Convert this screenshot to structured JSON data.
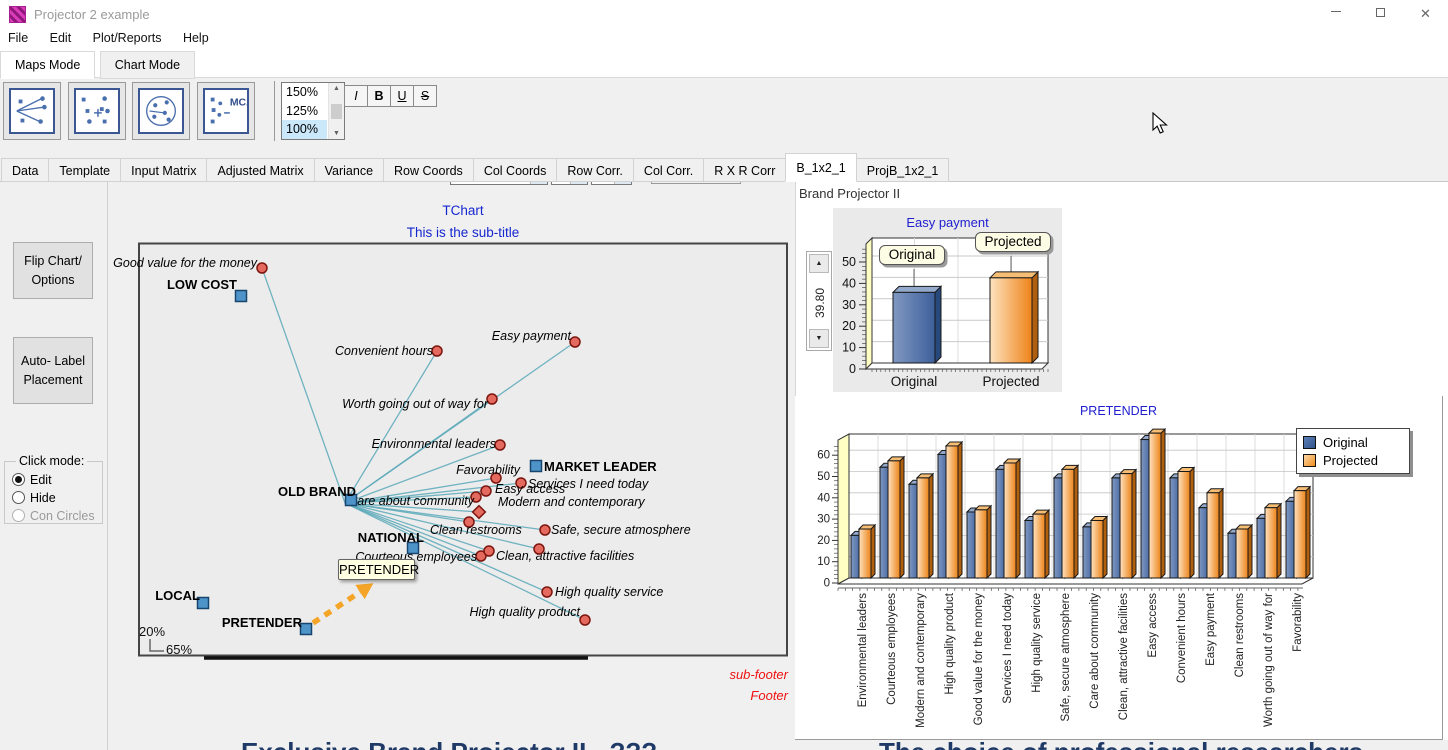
{
  "window": {
    "title": "Projector 2 example",
    "close_glyph": "✕"
  },
  "icons": {
    "dropdown": "▼",
    "up_arrow": "▲",
    "down_arrow": "▼",
    "mca": "MCA"
  },
  "menu": {
    "items": [
      "File",
      "Edit",
      "Plot/Reports",
      "Help"
    ]
  },
  "mode_tabs": {
    "items": [
      "Maps Mode",
      "Chart Mode"
    ],
    "active": "Maps Mode"
  },
  "toolbar": {
    "zoom_levels": [
      "150%",
      "125%",
      "100%"
    ],
    "zoom_selected": "100%",
    "format_buttons": [
      "I",
      "B",
      "U",
      "S"
    ],
    "font_name": "Segoe UI",
    "font_size": "12",
    "font_color": "#000000"
  },
  "tabs": {
    "items": [
      "Data",
      "Template",
      "Input Matrix",
      "Adjusted Matrix",
      "Variance",
      "Row Coords",
      "Col Coords",
      "Row Corr.",
      "Col Corr.",
      "R X R Corr",
      "B_1x2_1",
      "ProjB_1x2_1"
    ],
    "active": "B_1x2_1"
  },
  "sidebar": {
    "flip_button": "Flip Chart/ Options",
    "auto_label_button": "Auto- Label Placement",
    "click_mode": {
      "label": "Click mode:",
      "options": [
        {
          "label": "Edit",
          "checked": true,
          "disabled": false
        },
        {
          "label": "Hide",
          "checked": false,
          "disabled": false
        },
        {
          "label": "Con Circles",
          "checked": false,
          "disabled": true
        }
      ]
    }
  },
  "right_panel": {
    "header": "Brand Projector II",
    "spinner_value": "39.80"
  },
  "footer_headlines": {
    "left": "Exclusive Brand Projector II - ???",
    "right": "The choice of professional researchers"
  },
  "chart_data": [
    {
      "id": "map",
      "type": "scatter",
      "title": "TChart",
      "subtitle": "This is the sub-title",
      "footer": "Footer",
      "sub_footer": "sub-footer",
      "tooltip": "PRETENDER",
      "scale_v": "20%",
      "scale_h": "65%",
      "line_color": "#5aa9b9",
      "point_color": "#e4695e",
      "brand_color": "#4f94c8",
      "arrow_color": "#f4a426",
      "hub": {
        "x": 345,
        "y": 503
      },
      "brands": [
        {
          "label": "LOW COST",
          "x": 241,
          "y": 296,
          "tx": 237,
          "ty": 289,
          "anchor": "end"
        },
        {
          "label": "OLD BRAND",
          "x": 351,
          "y": 500,
          "tx": 356,
          "ty": 496,
          "anchor": "end"
        },
        {
          "label": "MARKET LEADER",
          "x": 536,
          "y": 466,
          "tx": 544,
          "ty": 471,
          "anchor": "start"
        },
        {
          "label": "NATIONAL",
          "x": 413,
          "y": 548,
          "tx": 424,
          "ty": 542,
          "anchor": "end"
        },
        {
          "label": "LOCAL",
          "x": 203,
          "y": 603,
          "tx": 200,
          "ty": 600,
          "anchor": "end"
        },
        {
          "label": "PRETENDER",
          "x": 306,
          "y": 629,
          "tx": 302,
          "ty": 627,
          "anchor": "end"
        }
      ],
      "attributes": [
        {
          "label": "Good value for the money",
          "x": 262,
          "y": 268,
          "tx": 257,
          "ty": 267,
          "anchor": "end"
        },
        {
          "label": "Convenient hours",
          "x": 437,
          "y": 351,
          "tx": 433,
          "ty": 355,
          "anchor": "end"
        },
        {
          "label": "Easy payment",
          "x": 575,
          "y": 342,
          "tx": 571,
          "ty": 340,
          "anchor": "end"
        },
        {
          "label": "Worth going out of way for",
          "x": 492,
          "y": 399,
          "tx": 488,
          "ty": 408,
          "anchor": "end"
        },
        {
          "label": "Environmental leaders",
          "x": 500,
          "y": 445,
          "tx": 496,
          "ty": 448,
          "anchor": "end"
        },
        {
          "label": "Favorability",
          "x": 496,
          "y": 478,
          "tx": 520,
          "ty": 474,
          "anchor": "end"
        },
        {
          "label": "Services I need today",
          "x": 521,
          "y": 483,
          "tx": 528,
          "ty": 488,
          "anchor": "start"
        },
        {
          "label": "Easy access",
          "x": 486,
          "y": 491,
          "tx": 495,
          "ty": 493,
          "anchor": "start"
        },
        {
          "label": "Modern and contemporary",
          "x": 476,
          "y": 497,
          "tx": 498,
          "ty": 506,
          "anchor": "start"
        },
        {
          "label": "Care about community",
          "x": 479,
          "y": 512,
          "marker": "diamond",
          "tx": 474,
          "ty": 505,
          "anchor": "end"
        },
        {
          "label": "Clean restrooms",
          "x": 469,
          "y": 522,
          "tx": 430,
          "ty": 534,
          "anchor": "start"
        },
        {
          "label": "Safe, secure atmosphere",
          "x": 545,
          "y": 530,
          "tx": 551,
          "ty": 534,
          "anchor": "start"
        },
        {
          "label": "Courteous employees",
          "x": 481,
          "y": 556,
          "tx": 477,
          "ty": 561,
          "anchor": "end"
        },
        {
          "label": "Clean, attractive facilities",
          "x": 489,
          "y": 551,
          "tx": 496,
          "ty": 560,
          "anchor": "start"
        },
        {
          "label": "",
          "x": 539,
          "y": 549
        },
        {
          "label": "High quality service",
          "x": 547,
          "y": 592,
          "tx": 555,
          "ty": 596,
          "anchor": "start"
        },
        {
          "label": "High quality product",
          "x": 585,
          "y": 620,
          "tx": 580,
          "ty": 616,
          "anchor": "end"
        }
      ],
      "arrow": {
        "x1": 313,
        "y1": 623,
        "x2": 360,
        "y2": 592
      }
    },
    {
      "id": "easy_payment",
      "type": "bar",
      "title": "Easy payment",
      "categories": [
        "Original",
        "Projected"
      ],
      "values": [
        33,
        39.8
      ],
      "yticks": [
        0,
        10,
        20,
        30,
        40,
        50
      ],
      "ylim": [
        0,
        58
      ],
      "colors": {
        "original": "#3d5f9b",
        "projected": "#ee8318"
      }
    },
    {
      "id": "pretender",
      "type": "bar",
      "title": "PRETENDER",
      "categories": [
        "Environmental leaders",
        "Courteous employees",
        "Modern and contemporary",
        "High quality product",
        "Good value for the money",
        "Services I need today",
        "High quality service",
        "Safe, secure atmosphere",
        "Care about community",
        "Clean, attractive facilities",
        "Easy access",
        "Convenient hours",
        "Easy payment",
        "Clean restrooms",
        "Worth going out of way for",
        "Favorability"
      ],
      "series": [
        {
          "name": "Original",
          "values": [
            20,
            52,
            44,
            58,
            31,
            51,
            27,
            47,
            24,
            47,
            65,
            47,
            33,
            21,
            28,
            36
          ]
        },
        {
          "name": "Projected",
          "values": [
            23,
            55,
            47,
            62,
            32,
            54,
            30,
            51,
            27,
            49,
            68,
            50,
            40,
            23,
            33,
            41
          ]
        }
      ],
      "yticks": [
        0,
        10,
        20,
        30,
        40,
        50,
        60
      ],
      "ylim": [
        0,
        67
      ],
      "legend_position": "top-right",
      "colors": {
        "original": "#3d5f9b",
        "projected": "#ee8318"
      }
    }
  ]
}
